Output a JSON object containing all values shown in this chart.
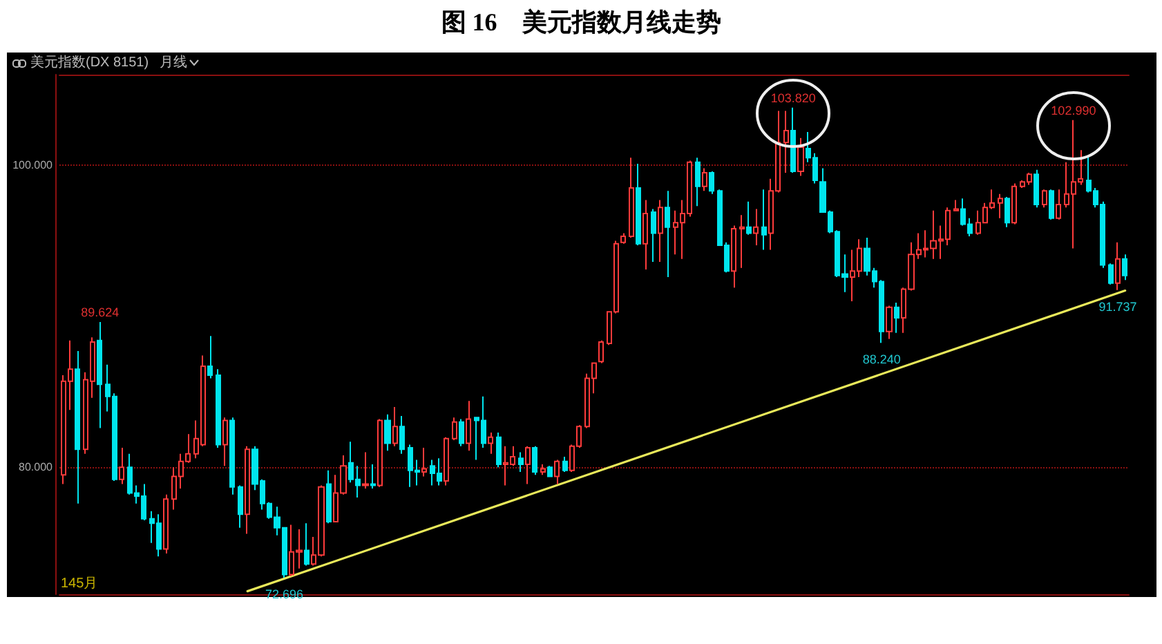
{
  "chart_data": {
    "type": "candlestick",
    "title": "图 16　美元指数月线走势",
    "subtitle": "美元指数(DX 8151)",
    "categories": [
      null,
      null,
      null,
      null,
      null,
      null,
      null,
      null,
      null,
      null,
      null,
      null,
      null,
      null,
      null,
      null,
      null,
      null,
      null,
      null,
      null,
      null,
      null,
      null,
      null,
      null,
      null,
      null,
      null,
      null,
      null,
      null,
      null,
      null,
      null,
      null,
      null,
      null,
      null,
      null,
      null,
      null,
      null,
      null,
      null,
      null,
      null,
      null,
      null,
      null,
      null,
      null,
      null,
      null,
      null,
      null,
      null,
      null,
      null,
      null,
      null,
      null,
      null,
      null,
      null,
      null,
      null,
      null,
      null,
      null,
      null,
      null,
      null,
      null,
      null,
      null,
      null,
      null,
      null,
      null,
      null,
      null,
      null,
      null,
      null,
      null,
      null,
      null,
      null,
      null,
      null,
      null,
      null,
      null,
      null,
      null,
      null,
      null,
      null,
      null,
      null,
      null,
      null,
      null,
      null,
      null,
      null,
      null,
      null,
      null,
      null,
      null,
      null,
      null,
      null,
      null,
      null,
      null,
      null,
      null,
      null,
      null,
      null,
      null,
      null,
      null,
      null,
      null,
      null,
      null,
      null,
      null,
      null,
      null,
      null,
      null,
      null,
      null,
      null,
      null,
      null,
      null,
      null,
      null,
      null
    ],
    "ylim": [
      71.6,
      106
    ],
    "yticks": [
      {
        "value": 80,
        "label": "80.000"
      },
      {
        "value": 100,
        "label": "100.000"
      }
    ],
    "grid": "y",
    "series": [
      {
        "type": "candlestick",
        "ohlc": [
          [
            79.5,
            86.1,
            78.9,
            85.7
          ],
          [
            85.7,
            88.4,
            83.8,
            86.5
          ],
          [
            86.5,
            87.7,
            77.6,
            81.2
          ],
          [
            81.2,
            86.3,
            80.9,
            85.8
          ],
          [
            85.7,
            88.6,
            84.6,
            88.3
          ],
          [
            88.4,
            89.624,
            82.6,
            85.5
          ],
          [
            85.5,
            86.8,
            83.7,
            84.7
          ],
          [
            84.7,
            84.9,
            79.1,
            79.2
          ],
          [
            79.2,
            81.3,
            78.9,
            80.0
          ],
          [
            80.0,
            80.9,
            78.2,
            78.3
          ],
          [
            78.3,
            78.8,
            77.6,
            78.1
          ],
          [
            78.1,
            78.9,
            76.5,
            76.6
          ],
          [
            76.6,
            77.1,
            75.0,
            76.3
          ],
          [
            76.3,
            76.9,
            74.1,
            74.6
          ],
          [
            74.6,
            78.2,
            74.3,
            77.9
          ],
          [
            77.9,
            80.0,
            77.2,
            79.4
          ],
          [
            79.4,
            80.9,
            78.6,
            80.4
          ],
          [
            80.4,
            82.2,
            80.3,
            80.9
          ],
          [
            80.9,
            83.1,
            80.6,
            81.9
          ],
          [
            81.5,
            87.4,
            81.4,
            86.7
          ],
          [
            86.7,
            88.7,
            85.9,
            86.1
          ],
          [
            86.1,
            86.5,
            81.3,
            81.5
          ],
          [
            81.5,
            83.3,
            80.1,
            83.1
          ],
          [
            83.1,
            83.3,
            78.2,
            78.7
          ],
          [
            78.7,
            78.8,
            76.0,
            76.9
          ],
          [
            76.9,
            81.4,
            75.6,
            81.2
          ],
          [
            81.2,
            81.4,
            78.5,
            78.9
          ],
          [
            79.1,
            79.2,
            77.2,
            77.6
          ],
          [
            77.6,
            77.7,
            76.6,
            76.7
          ],
          [
            76.7,
            77.4,
            75.5,
            76.0
          ],
          [
            76.0,
            76.0,
            72.696,
            72.9
          ],
          [
            72.9,
            76.2,
            72.8,
            74.4
          ],
          [
            74.4,
            75.9,
            73.3,
            74.5
          ],
          [
            74.5,
            76.3,
            73.5,
            73.6
          ],
          [
            73.6,
            75.4,
            73.5,
            74.2
          ],
          [
            74.2,
            78.8,
            74.1,
            78.7
          ],
          [
            78.9,
            79.8,
            76.3,
            76.4
          ],
          [
            76.4,
            79.5,
            76.4,
            78.3
          ],
          [
            78.3,
            80.8,
            78.2,
            80.1
          ],
          [
            80.3,
            81.7,
            79.0,
            79.2
          ],
          [
            79.2,
            80.1,
            78.0,
            78.8
          ],
          [
            78.8,
            81.0,
            78.6,
            78.9
          ],
          [
            78.9,
            80.2,
            78.6,
            78.8
          ],
          [
            78.8,
            83.2,
            78.7,
            83.1
          ],
          [
            83.1,
            83.5,
            81.1,
            81.6
          ],
          [
            81.6,
            84.0,
            81.4,
            82.7
          ],
          [
            82.7,
            83.4,
            80.9,
            81.2
          ],
          [
            81.3,
            81.5,
            78.7,
            79.8
          ],
          [
            79.8,
            80.5,
            78.8,
            79.7
          ],
          [
            79.7,
            81.3,
            79.4,
            79.9
          ],
          [
            80.1,
            80.5,
            78.8,
            79.6
          ],
          [
            79.6,
            80.6,
            78.8,
            79.1
          ],
          [
            79.1,
            82.0,
            78.8,
            81.9
          ],
          [
            81.9,
            83.3,
            81.8,
            83.0
          ],
          [
            83.0,
            83.2,
            81.4,
            81.6
          ],
          [
            81.6,
            84.4,
            81.1,
            83.2
          ],
          [
            83.3,
            83.3,
            80.5,
            83.1
          ],
          [
            83.1,
            84.7,
            81.3,
            81.6
          ],
          [
            81.6,
            82.3,
            80.9,
            82.0
          ],
          [
            82.0,
            82.3,
            80.0,
            80.2
          ],
          [
            80.2,
            81.4,
            78.8,
            80.3
          ],
          [
            80.2,
            81.4,
            80.1,
            80.7
          ],
          [
            80.6,
            81.0,
            79.7,
            80.2
          ],
          [
            80.2,
            81.4,
            78.9,
            81.3
          ],
          [
            81.3,
            81.4,
            79.5,
            79.7
          ],
          [
            79.7,
            80.2,
            79.5,
            79.9
          ],
          [
            80.0,
            80.1,
            79.4,
            79.4
          ],
          [
            79.4,
            80.5,
            78.9,
            80.4
          ],
          [
            80.4,
            80.7,
            79.7,
            79.8
          ],
          [
            79.8,
            81.5,
            79.7,
            81.4
          ],
          [
            81.4,
            82.8,
            81.3,
            82.7
          ],
          [
            82.7,
            86.2,
            82.6,
            85.9
          ],
          [
            85.9,
            86.9,
            84.9,
            86.9
          ],
          [
            87.0,
            88.4,
            86.9,
            88.3
          ],
          [
            88.2,
            90.3,
            88.1,
            90.3
          ],
          [
            90.3,
            95.0,
            90.2,
            94.8
          ],
          [
            94.9,
            95.5,
            94.8,
            95.3
          ],
          [
            95.3,
            100.5,
            95.2,
            98.5
          ],
          [
            98.5,
            100.1,
            94.7,
            94.8
          ],
          [
            94.8,
            97.7,
            93.1,
            96.8
          ],
          [
            96.9,
            97.1,
            93.6,
            95.5
          ],
          [
            95.5,
            97.7,
            93.6,
            97.2
          ],
          [
            97.2,
            98.3,
            92.6,
            95.9
          ],
          [
            95.9,
            97.0,
            94.1,
            96.2
          ],
          [
            96.2,
            97.7,
            93.8,
            96.8
          ],
          [
            96.8,
            100.3,
            96.6,
            100.2
          ],
          [
            100.2,
            100.5,
            97.3,
            98.6
          ],
          [
            98.6,
            99.8,
            98.3,
            99.5
          ],
          [
            99.5,
            99.6,
            98.1,
            98.3
          ],
          [
            98.3,
            98.4,
            94.7,
            94.7
          ],
          [
            94.7,
            94.9,
            92.9,
            93.0
          ],
          [
            93.0,
            96.0,
            91.9,
            95.8
          ],
          [
            95.8,
            96.7,
            93.2,
            95.9
          ],
          [
            95.9,
            97.6,
            95.4,
            95.5
          ],
          [
            95.5,
            97.1,
            94.7,
            95.9
          ],
          [
            95.9,
            98.4,
            94.4,
            95.4
          ],
          [
            95.5,
            99.1,
            94.4,
            98.3
          ],
          [
            98.3,
            103.6,
            98.2,
            101.5
          ],
          [
            101.5,
            103.6,
            99.5,
            102.3
          ],
          [
            102.3,
            103.82,
            99.5,
            99.6
          ],
          [
            99.6,
            101.8,
            99.3,
            101.2
          ],
          [
            101.1,
            102.2,
            100.2,
            100.5
          ],
          [
            100.5,
            100.8,
            98.8,
            99.0
          ],
          [
            98.9,
            99.8,
            96.9,
            96.9
          ],
          [
            96.9,
            97.0,
            95.5,
            95.6
          ],
          [
            95.6,
            95.7,
            92.6,
            92.7
          ],
          [
            92.8,
            94.1,
            91.6,
            92.6
          ],
          [
            92.6,
            94.4,
            91.0,
            93.0
          ],
          [
            93.0,
            95.1,
            92.6,
            94.5
          ],
          [
            94.5,
            95.2,
            92.7,
            93.0
          ],
          [
            93.0,
            93.2,
            91.9,
            92.3
          ],
          [
            92.3,
            92.4,
            88.24,
            89.0
          ],
          [
            89.0,
            90.7,
            88.5,
            90.6
          ],
          [
            90.6,
            90.9,
            88.9,
            89.9
          ],
          [
            89.9,
            91.9,
            88.9,
            91.8
          ],
          [
            91.8,
            94.9,
            91.7,
            94.1
          ],
          [
            94.1,
            95.5,
            93.8,
            94.4
          ],
          [
            94.4,
            95.7,
            93.9,
            94.5
          ],
          [
            94.5,
            97.0,
            93.8,
            95.0
          ],
          [
            95.0,
            96.0,
            93.8,
            95.1
          ],
          [
            95.1,
            97.2,
            94.7,
            97.0
          ],
          [
            97.0,
            97.7,
            97.0,
            97.1
          ],
          [
            97.1,
            97.8,
            96.0,
            96.1
          ],
          [
            96.1,
            96.5,
            95.3,
            95.5
          ],
          [
            95.5,
            97.0,
            95.4,
            96.2
          ],
          [
            96.2,
            97.5,
            96.2,
            97.2
          ],
          [
            97.2,
            98.4,
            97.1,
            97.5
          ],
          [
            97.5,
            98.1,
            96.5,
            97.8
          ],
          [
            97.8,
            97.9,
            95.9,
            96.2
          ],
          [
            96.2,
            98.8,
            96.1,
            98.6
          ],
          [
            98.6,
            99.0,
            98.5,
            98.9
          ],
          [
            98.9,
            99.5,
            98.7,
            99.4
          ],
          [
            99.4,
            99.7,
            97.2,
            97.4
          ],
          [
            97.4,
            98.4,
            97.2,
            98.3
          ],
          [
            98.3,
            98.4,
            96.4,
            96.5
          ],
          [
            96.5,
            98.4,
            96.4,
            97.4
          ],
          [
            97.4,
            100.2,
            97.2,
            98.1
          ],
          [
            98.1,
            102.99,
            94.5,
            98.9
          ],
          [
            98.9,
            101.0,
            98.7,
            99.1
          ],
          [
            99.0,
            100.6,
            98.2,
            98.3
          ],
          [
            98.3,
            98.5,
            97.2,
            97.4
          ],
          [
            97.4,
            97.6,
            93.2,
            93.4
          ],
          [
            93.4,
            93.5,
            92.1,
            92.2
          ],
          [
            92.2,
            94.9,
            91.737,
            93.8
          ],
          [
            93.8,
            94.1,
            92.4,
            92.7
          ]
        ],
        "colors": [
          "#ff3b3b",
          "#ff3b3b",
          "#00e5ee",
          "#ff3b3b",
          "#ff3b3b",
          "#00e5ee",
          "#00e5ee",
          "#00e5ee",
          "#ff3b3b",
          "#00e5ee",
          "#00e5ee",
          "#00e5ee",
          "#00e5ee",
          "#00e5ee",
          "#ff3b3b",
          "#ff3b3b",
          "#ff3b3b",
          "#ff3b3b",
          "#ff3b3b",
          "#ff3b3b",
          "#00e5ee",
          "#00e5ee",
          "#ff3b3b",
          "#00e5ee",
          "#00e5ee",
          "#ff3b3b",
          "#00e5ee",
          "#00e5ee",
          "#00e5ee",
          "#00e5ee",
          "#00e5ee",
          "#ff3b3b",
          "#ff3b3b",
          "#00e5ee",
          "#ff3b3b",
          "#ff3b3b",
          "#00e5ee",
          "#ff3b3b",
          "#ff3b3b",
          "#00e5ee",
          "#00e5ee",
          "#ff3b3b",
          "#00e5ee",
          "#ff3b3b",
          "#00e5ee",
          "#ff3b3b",
          "#00e5ee",
          "#00e5ee",
          "#00e5ee",
          "#ff3b3b",
          "#00e5ee",
          "#00e5ee",
          "#ff3b3b",
          "#ff3b3b",
          "#00e5ee",
          "#ff3b3b",
          "#00e5ee",
          "#00e5ee",
          "#ff3b3b",
          "#00e5ee",
          "#ff3b3b",
          "#ff3b3b",
          "#00e5ee",
          "#ff3b3b",
          "#00e5ee",
          "#ff3b3b",
          "#00e5ee",
          "#ff3b3b",
          "#00e5ee",
          "#ff3b3b",
          "#ff3b3b",
          "#ff3b3b",
          "#ff3b3b",
          "#ff3b3b",
          "#ff3b3b",
          "#ff3b3b",
          "#ff3b3b",
          "#ff3b3b",
          "#00e5ee",
          "#ff3b3b",
          "#00e5ee",
          "#ff3b3b",
          "#00e5ee",
          "#ff3b3b",
          "#ff3b3b",
          "#ff3b3b",
          "#00e5ee",
          "#ff3b3b",
          "#00e5ee",
          "#00e5ee",
          "#00e5ee",
          "#ff3b3b",
          "#ff3b3b",
          "#00e5ee",
          "#ff3b3b",
          "#00e5ee",
          "#ff3b3b",
          "#ff3b3b",
          "#ff3b3b",
          "#00e5ee",
          "#ff3b3b",
          "#00e5ee",
          "#00e5ee",
          "#00e5ee",
          "#00e5ee",
          "#00e5ee",
          "#00e5ee",
          "#ff3b3b",
          "#ff3b3b",
          "#00e5ee",
          "#00e5ee",
          "#00e5ee",
          "#ff3b3b",
          "#00e5ee",
          "#ff3b3b",
          "#ff3b3b",
          "#ff3b3b",
          "#ff3b3b",
          "#ff3b3b",
          "#ff3b3b",
          "#ff3b3b",
          "#ff3b3b",
          "#00e5ee",
          "#00e5ee",
          "#ff3b3b",
          "#ff3b3b",
          "#ff3b3b",
          "#ff3b3b",
          "#00e5ee",
          "#ff3b3b",
          "#ff3b3b",
          "#ff3b3b",
          "#00e5ee",
          "#ff3b3b",
          "#00e5ee",
          "#ff3b3b",
          "#ff3b3b",
          "#ff3b3b",
          "#ff3b3b",
          "#00e5ee",
          "#00e5ee",
          "#00e5ee",
          "#00e5ee",
          "#ff3b3b",
          "#00e5ee"
        ]
      },
      {
        "type": "line",
        "color": "#e8e85a",
        "values": [
          null,
          null,
          null,
          null,
          null,
          null,
          null,
          null,
          null,
          null,
          null,
          null,
          null,
          null,
          null,
          null,
          null,
          null,
          null,
          null,
          null,
          null,
          null,
          null,
          null,
          71.8,
          null,
          null,
          null,
          null,
          null,
          null,
          null,
          null,
          null,
          null,
          null,
          null,
          null,
          null,
          null,
          null,
          null,
          null,
          null,
          null,
          null,
          null,
          null,
          null,
          null,
          null,
          null,
          null,
          null,
          null,
          null,
          null,
          null,
          null,
          null,
          null,
          null,
          null,
          null,
          null,
          null,
          null,
          null,
          null,
          null,
          null,
          null,
          null,
          null,
          null,
          null,
          null,
          null,
          null,
          null,
          null,
          null,
          null,
          null,
          null,
          null,
          null,
          null,
          null,
          null,
          null,
          null,
          null,
          null,
          null,
          null,
          null,
          null,
          null,
          null,
          null,
          null,
          null,
          null,
          null,
          null,
          null,
          null,
          null,
          null,
          null,
          null,
          null,
          null,
          null,
          null,
          null,
          null,
          null,
          null,
          null,
          null,
          null,
          null,
          null,
          null,
          null,
          null,
          null,
          null,
          null,
          null,
          null,
          null,
          null,
          null,
          null,
          null,
          null,
          null,
          null,
          null,
          null,
          91.7
        ]
      }
    ],
    "annotations": [
      "月线",
      "145月",
      {
        "text": "89.624",
        "y": 89.624
      },
      {
        "text": "72.696",
        "y": 72.696
      },
      {
        "text": "103.820",
        "y": 103.82
      },
      {
        "text": "102.990",
        "y": 102.99
      },
      {
        "text": "88.240",
        "y": 88.24
      },
      {
        "text": "91.737",
        "y": 91.737
      }
    ]
  }
}
